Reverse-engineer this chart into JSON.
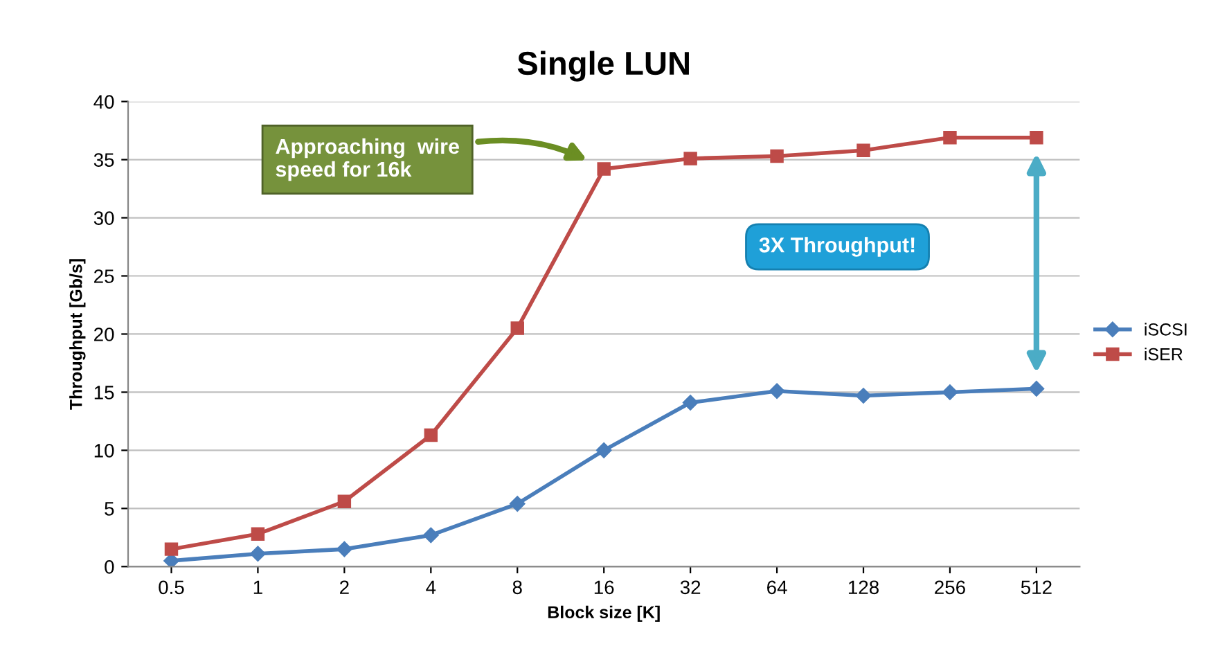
{
  "chart_data": {
    "type": "line",
    "title": "Single LUN",
    "xlabel": "Block size [K]",
    "ylabel": "Throughput [Gb/s]",
    "categories": [
      "0.5",
      "1",
      "2",
      "4",
      "8",
      "16",
      "32",
      "64",
      "128",
      "256",
      "512"
    ],
    "series": [
      {
        "name": "iSCSI",
        "color": "#4a7ebb",
        "marker": "diamond",
        "values": [
          0.5,
          1.1,
          1.5,
          2.7,
          5.4,
          10.0,
          14.1,
          15.1,
          14.7,
          15.0,
          15.3
        ]
      },
      {
        "name": "iSER",
        "color": "#be4b48",
        "marker": "square",
        "values": [
          1.5,
          2.8,
          5.6,
          11.3,
          20.5,
          34.2,
          35.1,
          35.3,
          35.8,
          36.9,
          36.9
        ]
      }
    ],
    "ylim": [
      0,
      40
    ],
    "yticks": [
      0,
      5,
      10,
      15,
      20,
      25,
      30,
      35,
      40
    ],
    "grid": "y",
    "legend": "right",
    "line_style": "solid",
    "annotations": [
      "Approaching  wire\nspeed for 16k",
      "3X Throughput!"
    ]
  }
}
